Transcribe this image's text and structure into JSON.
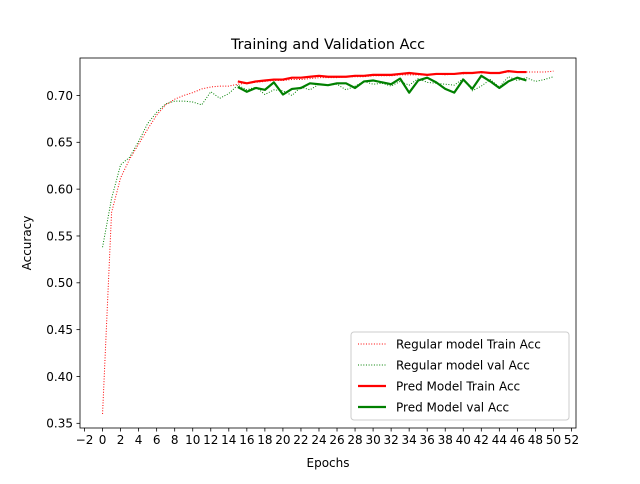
{
  "chart_data": {
    "type": "line",
    "title": "Training and Validation Acc",
    "xlabel": "Epochs",
    "ylabel": "Accuracy",
    "xlim": [
      -2.5,
      52.5
    ],
    "ylim": [
      0.345,
      0.74
    ],
    "xticks": [
      -2,
      0,
      2,
      4,
      6,
      8,
      10,
      12,
      14,
      16,
      18,
      20,
      22,
      24,
      26,
      28,
      30,
      32,
      34,
      36,
      38,
      40,
      42,
      44,
      46,
      48,
      50,
      52
    ],
    "yticks": [
      0.35,
      0.4,
      0.45,
      0.5,
      0.55,
      0.6,
      0.65,
      0.7
    ],
    "ytick_labels": [
      "0.35",
      "0.40",
      "0.45",
      "0.50",
      "0.55",
      "0.60",
      "0.65",
      "0.70"
    ],
    "grid": false,
    "legend_position": "lower-right",
    "series": [
      {
        "name": "Regular model Train Acc",
        "color": "#ff0000",
        "style": "dotted",
        "x": [
          0,
          1,
          2,
          3,
          4,
          5,
          6,
          7,
          8,
          9,
          10,
          11,
          12,
          13,
          14,
          15,
          16,
          17,
          18,
          19,
          20,
          21,
          22,
          23,
          24,
          25,
          26,
          27,
          28,
          29,
          30,
          31,
          32,
          33,
          34,
          35,
          36,
          37,
          38,
          39,
          40,
          41,
          42,
          43,
          44,
          45,
          46,
          47,
          48,
          49,
          50
        ],
        "y": [
          0.36,
          0.575,
          0.612,
          0.632,
          0.648,
          0.664,
          0.679,
          0.69,
          0.696,
          0.7,
          0.703,
          0.707,
          0.709,
          0.71,
          0.71,
          0.712,
          0.713,
          0.714,
          0.715,
          0.716,
          0.716,
          0.717,
          0.717,
          0.718,
          0.719,
          0.719,
          0.719,
          0.72,
          0.72,
          0.72,
          0.721,
          0.721,
          0.721,
          0.722,
          0.722,
          0.722,
          0.722,
          0.723,
          0.722,
          0.723,
          0.723,
          0.724,
          0.724,
          0.724,
          0.724,
          0.725,
          0.725,
          0.725,
          0.725,
          0.725,
          0.726
        ]
      },
      {
        "name": "Regular model val Acc",
        "color": "#008000",
        "style": "dotted",
        "x": [
          0,
          1,
          2,
          3,
          4,
          5,
          6,
          7,
          8,
          9,
          10,
          11,
          12,
          13,
          14,
          15,
          16,
          17,
          18,
          19,
          20,
          21,
          22,
          23,
          24,
          25,
          26,
          27,
          28,
          29,
          30,
          31,
          32,
          33,
          34,
          35,
          36,
          37,
          38,
          39,
          40,
          41,
          42,
          43,
          44,
          45,
          46,
          47,
          48,
          49,
          50
        ],
        "y": [
          0.538,
          0.59,
          0.626,
          0.634,
          0.651,
          0.67,
          0.682,
          0.691,
          0.694,
          0.694,
          0.693,
          0.69,
          0.704,
          0.697,
          0.702,
          0.711,
          0.706,
          0.709,
          0.701,
          0.706,
          0.705,
          0.7,
          0.709,
          0.706,
          0.712,
          0.711,
          0.712,
          0.706,
          0.71,
          0.715,
          0.712,
          0.713,
          0.71,
          0.715,
          0.711,
          0.718,
          0.714,
          0.713,
          0.712,
          0.711,
          0.718,
          0.705,
          0.71,
          0.717,
          0.709,
          0.72,
          0.716,
          0.719,
          0.715,
          0.717,
          0.72
        ]
      },
      {
        "name": "Pred Model Train Acc",
        "color": "#ff0000",
        "style": "solid",
        "x": [
          15,
          16,
          17,
          18,
          19,
          20,
          21,
          22,
          23,
          24,
          25,
          26,
          27,
          28,
          29,
          30,
          31,
          32,
          33,
          34,
          35,
          36,
          37,
          38,
          39,
          40,
          41,
          42,
          43,
          44,
          45,
          46,
          47
        ],
        "y": [
          0.715,
          0.713,
          0.715,
          0.716,
          0.717,
          0.717,
          0.719,
          0.719,
          0.72,
          0.721,
          0.72,
          0.72,
          0.72,
          0.721,
          0.721,
          0.722,
          0.722,
          0.722,
          0.723,
          0.724,
          0.723,
          0.722,
          0.723,
          0.723,
          0.723,
          0.724,
          0.724,
          0.725,
          0.724,
          0.724,
          0.726,
          0.725,
          0.725
        ]
      },
      {
        "name": "Pred Model val Acc",
        "color": "#008000",
        "style": "solid",
        "x": [
          15,
          16,
          17,
          18,
          19,
          20,
          21,
          22,
          23,
          24,
          25,
          26,
          27,
          28,
          29,
          30,
          31,
          32,
          33,
          34,
          35,
          36,
          37,
          38,
          39,
          40,
          41,
          42,
          43,
          44,
          45,
          46,
          47
        ],
        "y": [
          0.709,
          0.704,
          0.708,
          0.706,
          0.714,
          0.701,
          0.707,
          0.708,
          0.713,
          0.712,
          0.711,
          0.713,
          0.713,
          0.708,
          0.715,
          0.716,
          0.714,
          0.712,
          0.718,
          0.703,
          0.716,
          0.719,
          0.714,
          0.707,
          0.703,
          0.717,
          0.707,
          0.721,
          0.715,
          0.708,
          0.715,
          0.719,
          0.716
        ]
      }
    ]
  }
}
